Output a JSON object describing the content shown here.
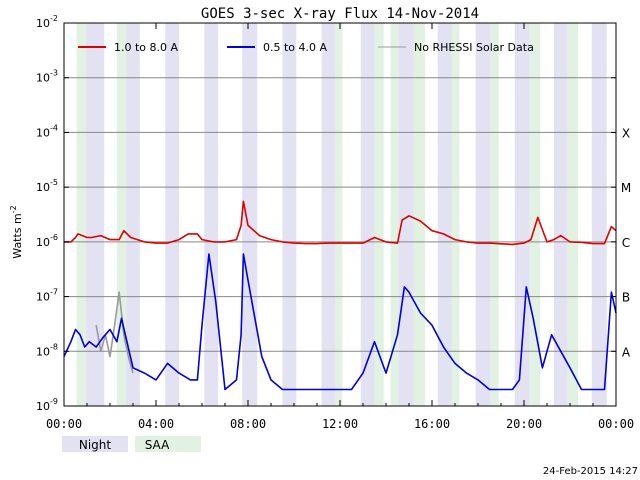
{
  "chart_data": {
    "type": "line",
    "title": "GOES 3-sec X-ray Flux    14-Nov-2014",
    "ylabel": "Watts m",
    "ylabel_exponent": "-2",
    "y_scale": "log",
    "ylim": [
      1e-09,
      0.01
    ],
    "y_ticks": [
      {
        "value": 0.01,
        "base": "10",
        "exp": "-2"
      },
      {
        "value": 0.001,
        "base": "10",
        "exp": "-3"
      },
      {
        "value": 0.0001,
        "base": "10",
        "exp": "-4"
      },
      {
        "value": 1e-05,
        "base": "10",
        "exp": "-5"
      },
      {
        "value": 1e-06,
        "base": "10",
        "exp": "-6"
      },
      {
        "value": 1e-07,
        "base": "10",
        "exp": "-7"
      },
      {
        "value": 1e-08,
        "base": "10",
        "exp": "-8"
      },
      {
        "value": 1e-09,
        "base": "10",
        "exp": "-9"
      }
    ],
    "xlim": [
      "00:00",
      "24:00"
    ],
    "x_ticks": [
      "00:00",
      "04:00",
      "08:00",
      "12:00",
      "16:00",
      "20:00",
      "00:00"
    ],
    "grid": "horizontal at decades",
    "flare_classes": [
      {
        "label": "X",
        "value": 0.0001
      },
      {
        "label": "M",
        "value": 1e-05
      },
      {
        "label": "C",
        "value": 1e-06
      },
      {
        "label": "B",
        "value": 1e-07
      },
      {
        "label": "A",
        "value": 1e-08
      }
    ],
    "legend": {
      "placement": "top",
      "entries": [
        {
          "name": "1.0 to 8.0 A",
          "color": "#e00000"
        },
        {
          "name": "0.5 to 4.0 A",
          "color": "#0000e0"
        },
        {
          "name": "No RHESSI Solar Data",
          "color": "#999999"
        }
      ]
    },
    "bottom_legend": [
      {
        "name": "Night",
        "color": "#e2e2f2"
      },
      {
        "name": "SAA",
        "color": "#e2f2e2"
      }
    ],
    "night_intervals_hours": [
      [
        0.95,
        1.75
      ],
      [
        2.7,
        3.3
      ],
      [
        4.4,
        5.0
      ],
      [
        6.1,
        6.7
      ],
      [
        7.75,
        8.4
      ],
      [
        9.5,
        10.1
      ],
      [
        11.2,
        11.8
      ],
      [
        12.9,
        13.5
      ],
      [
        14.55,
        15.2
      ],
      [
        16.25,
        16.85
      ],
      [
        17.9,
        18.55
      ],
      [
        19.6,
        20.25
      ],
      [
        21.3,
        21.9
      ],
      [
        22.95,
        23.6
      ]
    ],
    "saa_intervals_hours": [
      [
        0.55,
        0.95
      ],
      [
        2.3,
        2.7
      ],
      [
        11.8,
        12.1
      ],
      [
        13.5,
        13.9
      ],
      [
        14.2,
        14.55
      ],
      [
        15.2,
        15.7
      ],
      [
        16.85,
        17.2
      ],
      [
        18.55,
        18.9
      ],
      [
        20.25,
        20.7
      ],
      [
        21.9,
        22.35
      ]
    ],
    "series": [
      {
        "name": "1.0 to 8.0 A",
        "color": "#e00000",
        "x_hours": [
          0.0,
          0.3,
          0.5,
          0.6,
          0.8,
          1.0,
          1.2,
          1.6,
          2.0,
          2.4,
          2.6,
          2.9,
          3.5,
          4.0,
          4.5,
          5.0,
          5.4,
          5.8,
          6.0,
          6.5,
          7.0,
          7.5,
          7.7,
          7.8,
          8.0,
          8.5,
          9.0,
          9.5,
          10.0,
          10.5,
          11.0,
          11.5,
          12.0,
          12.5,
          13.0,
          13.5,
          14.0,
          14.5,
          14.7,
          15.0,
          15.5,
          16.0,
          16.5,
          17.0,
          17.5,
          18.0,
          18.5,
          19.0,
          19.5,
          20.0,
          20.3,
          20.6,
          21.0,
          21.3,
          21.6,
          22.0,
          22.5,
          23.0,
          23.5,
          23.8,
          24.0
        ],
        "y": [
          1e-06,
          1e-06,
          1.2e-06,
          1.4e-06,
          1.3e-06,
          1.2e-06,
          1.2e-06,
          1.3e-06,
          1.1e-06,
          1.1e-06,
          1.6e-06,
          1.2e-06,
          1e-06,
          9.5e-07,
          9.5e-07,
          1.1e-06,
          1.4e-06,
          1.4e-06,
          1.1e-06,
          1e-06,
          1e-06,
          1.1e-06,
          2e-06,
          5.5e-06,
          2e-06,
          1.3e-06,
          1.1e-06,
          1e-06,
          9.5e-07,
          9.3e-07,
          9.3e-07,
          9.5e-07,
          9.5e-07,
          9.5e-07,
          9.5e-07,
          1.2e-06,
          1e-06,
          9.5e-07,
          2.5e-06,
          3e-06,
          2.4e-06,
          1.6e-06,
          1.4e-06,
          1.1e-06,
          1e-06,
          9.5e-07,
          9.5e-07,
          9.2e-07,
          9e-07,
          9.5e-07,
          1.1e-06,
          2.8e-06,
          1e-06,
          1.1e-06,
          1.3e-06,
          1e-06,
          9.8e-07,
          9.3e-07,
          9.3e-07,
          1.9e-06,
          1.6e-06
        ]
      },
      {
        "name": "0.5 to 4.0 A",
        "color": "#0000e0",
        "x_hours": [
          0.0,
          0.3,
          0.5,
          0.7,
          0.9,
          1.1,
          1.4,
          1.7,
          2.0,
          2.3,
          2.5,
          3.0,
          3.5,
          4.0,
          4.5,
          5.0,
          5.5,
          5.8,
          6.0,
          6.3,
          6.6,
          7.0,
          7.5,
          7.7,
          7.8,
          8.0,
          8.3,
          8.6,
          9.0,
          9.5,
          10.0,
          10.5,
          11.0,
          11.5,
          12.0,
          12.5,
          13.0,
          13.5,
          14.0,
          14.5,
          14.8,
          15.0,
          15.5,
          16.0,
          16.5,
          17.0,
          17.5,
          18.0,
          18.5,
          19.0,
          19.5,
          19.8,
          20.1,
          20.4,
          20.8,
          21.2,
          21.6,
          22.0,
          22.5,
          23.0,
          23.5,
          23.8,
          24.0
        ],
        "y": [
          8e-09,
          1.5e-08,
          2.5e-08,
          2e-08,
          1.2e-08,
          1.5e-08,
          1.2e-08,
          1.8e-08,
          2.5e-08,
          1.5e-08,
          4e-08,
          5e-09,
          4e-09,
          3e-09,
          6e-09,
          4e-09,
          3e-09,
          3e-09,
          3e-08,
          6e-07,
          8e-08,
          2e-09,
          3e-09,
          2e-08,
          6e-07,
          2e-07,
          4e-08,
          8e-09,
          3e-09,
          2e-09,
          2e-09,
          2e-09,
          2e-09,
          2e-09,
          2e-09,
          2e-09,
          4e-09,
          1.5e-08,
          4e-09,
          2e-08,
          1.5e-07,
          1.2e-07,
          5e-08,
          3e-08,
          1.2e-08,
          6e-09,
          4e-09,
          3e-09,
          2e-09,
          2e-09,
          2e-09,
          3e-09,
          1.5e-07,
          4e-08,
          5e-09,
          2e-08,
          1e-08,
          5e-09,
          2e-09,
          2e-09,
          2e-09,
          1.2e-07,
          5e-08
        ]
      },
      {
        "name": "No RHESSI Solar Data",
        "color": "#999999",
        "x_hours": [
          1.4,
          1.6,
          1.8,
          2.0,
          2.2,
          2.4,
          2.6,
          2.8,
          3.0
        ],
        "y": [
          3e-08,
          1e-08,
          2e-08,
          8e-09,
          3e-08,
          1.2e-07,
          2e-08,
          8e-09,
          4e-09
        ]
      }
    ]
  },
  "footer": {
    "night_label": "Night",
    "saa_label": "SAA",
    "date_stamp": "24-Feb-2015 14:27"
  }
}
